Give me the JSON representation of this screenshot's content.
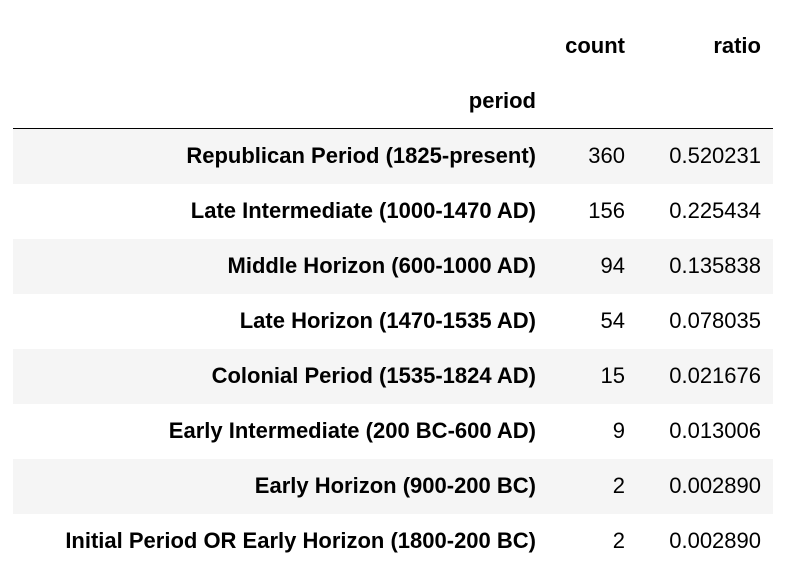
{
  "table": {
    "index_name": "period",
    "columns": [
      "count",
      "ratio"
    ],
    "rows": [
      {
        "period": "Republican Period (1825-present)",
        "count": "360",
        "ratio": "0.520231"
      },
      {
        "period": "Late Intermediate (1000-1470 AD)",
        "count": "156",
        "ratio": "0.225434"
      },
      {
        "period": "Middle Horizon (600-1000 AD)",
        "count": "94",
        "ratio": "0.135838"
      },
      {
        "period": "Late Horizon (1470-1535 AD)",
        "count": "54",
        "ratio": "0.078035"
      },
      {
        "period": "Colonial Period (1535-1824 AD)",
        "count": "15",
        "ratio": "0.021676"
      },
      {
        "period": "Early Intermediate (200 BC-600 AD)",
        "count": "9",
        "ratio": "0.013006"
      },
      {
        "period": "Early Horizon (900-200 BC)",
        "count": "2",
        "ratio": "0.002890"
      },
      {
        "period": "Initial Period OR Early Horizon (1800-200 BC)",
        "count": "2",
        "ratio": "0.002890"
      }
    ]
  },
  "colors": {
    "stripe": "#f5f5f5",
    "text": "#000000",
    "header_rule": "#000000"
  }
}
